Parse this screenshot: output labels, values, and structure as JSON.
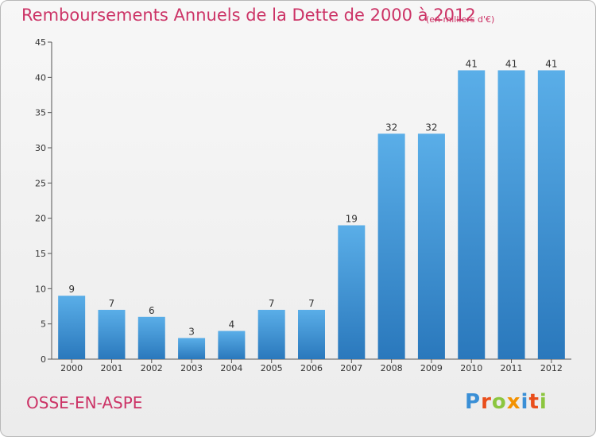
{
  "header": {
    "title": "Remboursements Annuels de la Dette de 2000 à 2012",
    "unit": "(en milliers d'€)"
  },
  "footer": {
    "commune": "OSSE-EN-ASPE",
    "logo_letters": [
      {
        "char": "P",
        "color": "#3a8fd6"
      },
      {
        "char": "r",
        "color": "#e94e1b"
      },
      {
        "char": "o",
        "color": "#8cc63f"
      },
      {
        "char": "x",
        "color": "#f39200"
      },
      {
        "char": "i",
        "color": "#3a8fd6"
      },
      {
        "char": "t",
        "color": "#e94e1b"
      },
      {
        "char": "i",
        "color": "#8cc63f"
      }
    ]
  },
  "chart_data": {
    "type": "bar",
    "title": "Remboursements Annuels de la Dette de 2000 à 2012",
    "subtitle": "(en milliers d'€)",
    "categories": [
      "2000",
      "2001",
      "2002",
      "2003",
      "2004",
      "2005",
      "2006",
      "2007",
      "2008",
      "2009",
      "2010",
      "2011",
      "2012"
    ],
    "values": [
      9,
      7,
      6,
      3,
      4,
      7,
      7,
      19,
      32,
      32,
      41,
      41,
      41
    ],
    "ylim": [
      0,
      45
    ],
    "yticks": [
      0,
      5,
      10,
      15,
      20,
      25,
      30,
      35,
      40,
      45
    ],
    "grid": false,
    "colors": {
      "bar_top": "#5aaee8",
      "bar_bottom": "#2a78bc",
      "title": "#cc3366",
      "axis": "#555555"
    }
  }
}
